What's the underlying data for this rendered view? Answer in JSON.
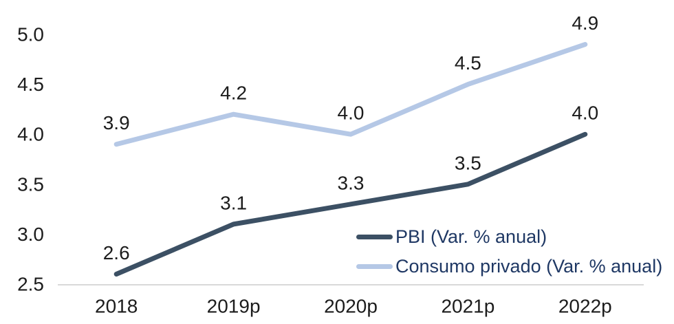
{
  "chart_data": {
    "type": "line",
    "title": "",
    "xlabel": "",
    "ylabel": "",
    "categories": [
      "2018",
      "2019p",
      "2020p",
      "2021p",
      "2022p"
    ],
    "series": [
      {
        "name": "PBI (Var. % anual)",
        "values": [
          2.6,
          3.1,
          3.3,
          3.5,
          4.0
        ],
        "color": "#3C5064"
      },
      {
        "name": "Consumo privado (Var. % anual)",
        "values": [
          3.9,
          4.2,
          4.0,
          4.5,
          4.9
        ],
        "color": "#B5C8E6"
      }
    ],
    "yticks": [
      2.5,
      3.0,
      3.5,
      4.0,
      4.5,
      5.0
    ],
    "ylim": [
      2.5,
      5.0
    ],
    "grid": false,
    "data_labels": true,
    "legend_position": "inside-bottom-right",
    "colors": {
      "background": "#FFFFFF",
      "axis_line": "#D9D9D9",
      "tick_label": "#1C1C1C",
      "data_label": "#1C1C1C",
      "legend_text": "#1F3864"
    }
  }
}
